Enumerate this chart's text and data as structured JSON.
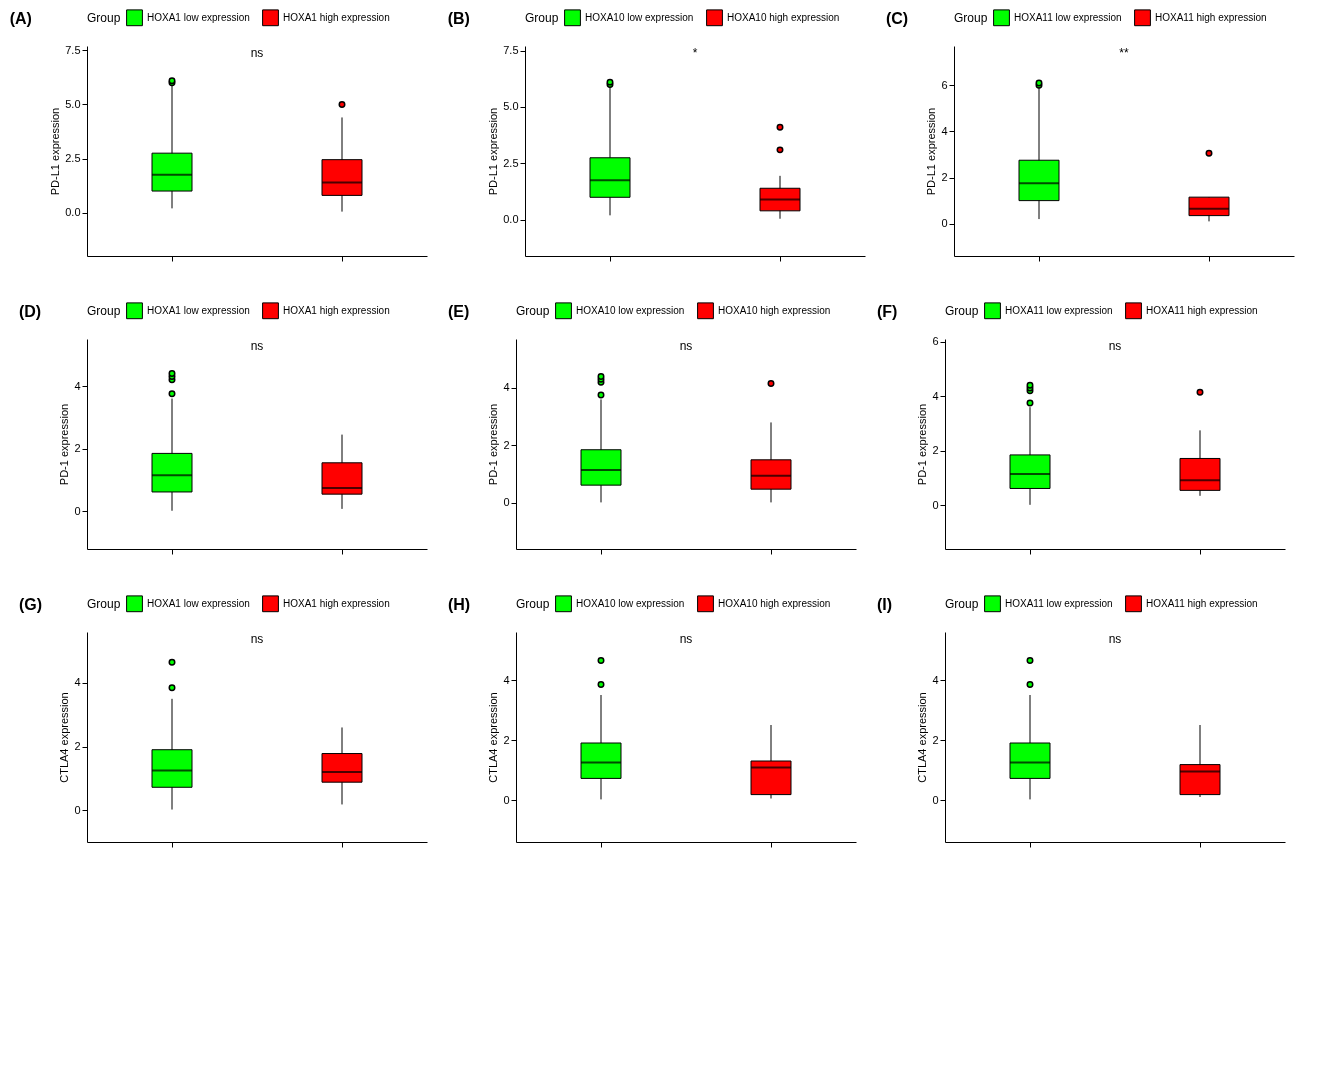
{
  "chart_data": [
    {
      "type": "box",
      "title": "(A)",
      "ylabel": "PD-L1 expression",
      "legend_title": "Group",
      "legend": "top",
      "tick_labels": "y",
      "grid": false,
      "categories": [
        null,
        null
      ],
      "ylim": [
        -2,
        7.7
      ],
      "yticks": [
        {
          "value": 0,
          "label": "0.0"
        },
        {
          "value": 2.5,
          "label": "2.5"
        },
        {
          "value": 5,
          "label": "5.0"
        },
        {
          "value": 7.5,
          "label": "7.5"
        }
      ],
      "annotations": [
        "ns"
      ],
      "series": [
        {
          "name": "HOXA1 low expression",
          "color": "#00ff00",
          "boxes": [
            {
              "low": 0.2,
              "q1": 1.0,
              "median": 1.75,
              "q3": 2.75,
              "high": 5.9,
              "outliers": [
                6.0,
                6.1
              ]
            },
            null
          ]
        },
        {
          "name": "HOXA1 high expression",
          "color": "#ff0000",
          "boxes": [
            null,
            {
              "low": 0.05,
              "q1": 0.8,
              "median": 1.4,
              "q3": 2.45,
              "high": 4.4,
              "outliers": [
                5.0
              ]
            }
          ]
        }
      ]
    },
    {
      "type": "box",
      "title": "(B)",
      "ylabel": "PD-L1 expression",
      "legend_title": "Group",
      "legend": "top",
      "tick_labels": "y",
      "grid": false,
      "categories": [
        null,
        null
      ],
      "ylim": [
        -1.6,
        7.7
      ],
      "yticks": [
        {
          "value": 0,
          "label": "0.0"
        },
        {
          "value": 2.5,
          "label": "2.5"
        },
        {
          "value": 5,
          "label": "5.0"
        },
        {
          "value": 7.5,
          "label": "7.5"
        }
      ],
      "annotations": [
        "*"
      ],
      "series": [
        {
          "name": "HOXA10 low expression",
          "color": "#00ff00",
          "boxes": [
            {
              "low": 0.2,
              "q1": 1.0,
              "median": 1.75,
              "q3": 2.75,
              "high": 5.9,
              "outliers": [
                6.0,
                6.1
              ]
            },
            null
          ]
        },
        {
          "name": "HOXA10 high expression",
          "color": "#ff0000",
          "boxes": [
            null,
            {
              "low": 0.05,
              "q1": 0.4,
              "median": 0.9,
              "q3": 1.4,
              "high": 1.95,
              "outliers": [
                3.1,
                4.1
              ]
            }
          ]
        }
      ]
    },
    {
      "type": "box",
      "title": "(C)",
      "ylabel": "PD-L1 expression",
      "legend_title": "Group",
      "legend": "top",
      "tick_labels": "y",
      "grid": false,
      "categories": [
        null,
        null
      ],
      "ylim": [
        -1.4,
        7.7
      ],
      "yticks": [
        0,
        2,
        4,
        6
      ],
      "annotations": [
        "**"
      ],
      "series": [
        {
          "name": "HOXA11 low expression",
          "color": "#00ff00",
          "boxes": [
            {
              "low": 0.2,
              "q1": 1.0,
              "median": 1.75,
              "q3": 2.75,
              "high": 5.9,
              "outliers": [
                6.0,
                6.1
              ]
            },
            null
          ]
        },
        {
          "name": "HOXA11 high expression",
          "color": "#ff0000",
          "boxes": [
            null,
            {
              "low": 0.1,
              "q1": 0.35,
              "median": 0.65,
              "q3": 1.15,
              "high": 1.15,
              "outliers": [
                3.05
              ]
            }
          ]
        }
      ]
    },
    {
      "type": "box",
      "title": "(D)",
      "ylabel": "PD-1 expression",
      "legend_title": "Group",
      "legend": "top",
      "tick_labels": "y",
      "grid": false,
      "categories": [
        null,
        null
      ],
      "ylim": [
        -1.2,
        5.5
      ],
      "yticks": [
        0,
        2,
        4
      ],
      "annotations": [
        "ns"
      ],
      "series": [
        {
          "name": "HOXA1 low expression",
          "color": "#00ff00",
          "boxes": [
            {
              "low": 0.02,
              "q1": 0.62,
              "median": 1.15,
              "q3": 1.85,
              "high": 3.6,
              "outliers": [
                3.75,
                4.2,
                4.3,
                4.4
              ]
            },
            null
          ]
        },
        {
          "name": "HOXA1 high expression",
          "color": "#ff0000",
          "boxes": [
            null,
            {
              "low": 0.08,
              "q1": 0.55,
              "median": 0.75,
              "q3": 1.55,
              "high": 2.45
            }
          ]
        }
      ]
    },
    {
      "type": "box",
      "title": "(E)",
      "ylabel": "PD-1 expression",
      "legend_title": "Group",
      "legend": "top",
      "tick_labels": "y",
      "grid": false,
      "categories": [
        null,
        null
      ],
      "ylim": [
        -1.6,
        5.7
      ],
      "yticks": [
        0,
        2,
        4
      ],
      "annotations": [
        "ns"
      ],
      "series": [
        {
          "name": "HOXA10 low expression",
          "color": "#00ff00",
          "boxes": [
            {
              "low": 0.02,
              "q1": 0.62,
              "median": 1.15,
              "q3": 1.85,
              "high": 3.6,
              "outliers": [
                3.75,
                4.2,
                4.3,
                4.4
              ]
            },
            null
          ]
        },
        {
          "name": "HOXA10 high expression",
          "color": "#ff0000",
          "boxes": [
            null,
            {
              "low": 0.02,
              "q1": 0.48,
              "median": 0.95,
              "q3": 1.5,
              "high": 2.8,
              "outliers": [
                4.15
              ]
            }
          ]
        }
      ]
    },
    {
      "type": "box",
      "title": "(F)",
      "ylabel": "PD-1 expression",
      "legend_title": "Group",
      "legend": "top",
      "tick_labels": "y",
      "grid": false,
      "categories": [
        null,
        null
      ],
      "ylim": [
        -1.6,
        6.1
      ],
      "yticks": [
        0,
        2,
        4,
        6
      ],
      "annotations": [
        "ns"
      ],
      "series": [
        {
          "name": "HOXA11 low expression",
          "color": "#00ff00",
          "boxes": [
            {
              "low": 0.02,
              "q1": 0.62,
              "median": 1.15,
              "q3": 1.85,
              "high": 3.6,
              "outliers": [
                3.75,
                4.2,
                4.3,
                4.4
              ]
            },
            null
          ]
        },
        {
          "name": "HOXA11 high expression",
          "color": "#ff0000",
          "boxes": [
            null,
            {
              "low": 0.35,
              "q1": 0.55,
              "median": 0.92,
              "q3": 1.72,
              "high": 2.75,
              "outliers": [
                4.15
              ]
            }
          ]
        }
      ]
    },
    {
      "type": "box",
      "title": "(G)",
      "ylabel": "CTLA4 expression",
      "legend_title": "Group",
      "legend": "top",
      "tick_labels": "y",
      "grid": false,
      "categories": [
        null,
        null
      ],
      "ylim": [
        -1.0,
        5.6
      ],
      "yticks": [
        0,
        2,
        4
      ],
      "annotations": [
        "ns"
      ],
      "series": [
        {
          "name": "HOXA1 low expression",
          "color": "#00ff00",
          "boxes": [
            {
              "low": 0.02,
              "q1": 0.72,
              "median": 1.25,
              "q3": 1.9,
              "high": 3.5,
              "outliers": [
                3.85,
                4.65
              ]
            },
            null
          ]
        },
        {
          "name": "HOXA1 high expression",
          "color": "#ff0000",
          "boxes": [
            null,
            {
              "low": 0.18,
              "q1": 0.88,
              "median": 1.2,
              "q3": 1.78,
              "high": 2.6
            }
          ]
        }
      ]
    },
    {
      "type": "box",
      "title": "(H)",
      "ylabel": "CTLA4 expression",
      "legend_title": "Group",
      "legend": "top",
      "tick_labels": "y",
      "grid": false,
      "categories": [
        null,
        null
      ],
      "ylim": [
        -1.4,
        5.6
      ],
      "yticks": [
        0,
        2,
        4
      ],
      "annotations": [
        "ns"
      ],
      "series": [
        {
          "name": "HOXA10 low expression",
          "color": "#00ff00",
          "boxes": [
            {
              "low": 0.02,
              "q1": 0.72,
              "median": 1.25,
              "q3": 1.9,
              "high": 3.5,
              "outliers": [
                3.85,
                4.65
              ]
            },
            null
          ]
        },
        {
          "name": "HOXA10 high expression",
          "color": "#ff0000",
          "boxes": [
            null,
            {
              "low": 0.05,
              "q1": 0.18,
              "median": 1.08,
              "q3": 1.3,
              "high": 2.5
            }
          ]
        }
      ]
    },
    {
      "type": "box",
      "title": "(I)",
      "ylabel": "CTLA4 expression",
      "legend_title": "Group",
      "legend": "top",
      "tick_labels": "y",
      "grid": false,
      "categories": [
        null,
        null
      ],
      "ylim": [
        -1.4,
        5.6
      ],
      "yticks": [
        0,
        2,
        4
      ],
      "annotations": [
        "ns"
      ],
      "series": [
        {
          "name": "HOXA11 low expression",
          "color": "#00ff00",
          "boxes": [
            {
              "low": 0.02,
              "q1": 0.72,
              "median": 1.25,
              "q3": 1.9,
              "high": 3.5,
              "outliers": [
                3.85,
                4.65
              ]
            },
            null
          ]
        },
        {
          "name": "HOXA11 high expression",
          "color": "#ff0000",
          "boxes": [
            null,
            {
              "low": 0.1,
              "q1": 0.18,
              "median": 0.95,
              "q3": 1.18,
              "high": 2.5
            }
          ]
        }
      ]
    }
  ]
}
